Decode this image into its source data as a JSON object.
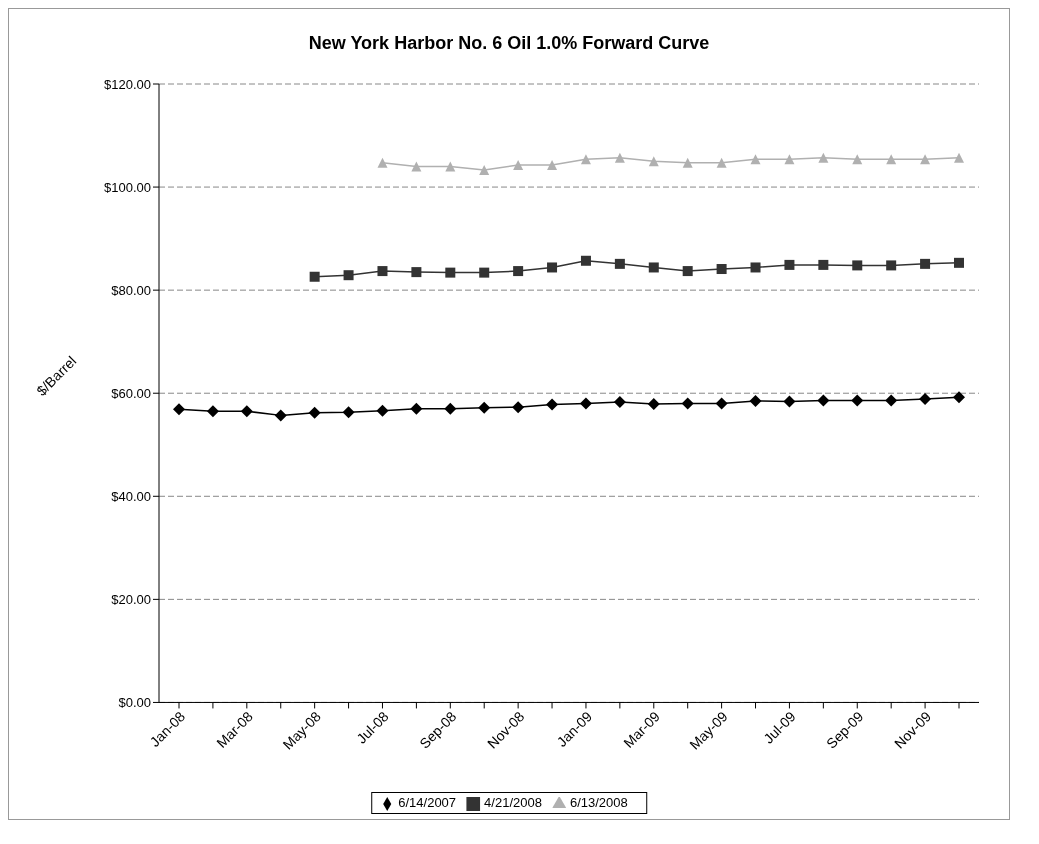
{
  "chart_data": {
    "type": "line",
    "title": "New York Harbor No. 6 Oil 1.0% Forward Curve",
    "ylabel": "$/Barrel",
    "categories": [
      "Jan-08",
      null,
      "Mar-08",
      null,
      "May-08",
      null,
      "Jul-08",
      null,
      "Sep-08",
      null,
      "Nov-08",
      null,
      "Jan-09",
      null,
      "Mar-09",
      null,
      "May-09",
      null,
      "Jul-09",
      null,
      "Sep-09",
      null,
      "Nov-09",
      null
    ],
    "series": [
      {
        "name": "6/14/2007",
        "color": "#000000",
        "marker": "diamond",
        "values": [
          56.9,
          56.5,
          56.5,
          55.7,
          56.2,
          56.3,
          56.6,
          57.0,
          57.0,
          57.2,
          57.3,
          57.8,
          58.0,
          58.3,
          57.9,
          58.0,
          58.0,
          58.5,
          58.4,
          58.6,
          58.6,
          58.6,
          58.9,
          59.2
        ]
      },
      {
        "name": "4/21/2008",
        "color": "#333333",
        "marker": "square",
        "values": [
          null,
          null,
          null,
          null,
          82.6,
          82.9,
          83.7,
          83.5,
          83.4,
          83.4,
          83.7,
          84.4,
          85.7,
          85.1,
          84.4,
          83.7,
          84.1,
          84.4,
          84.9,
          84.9,
          84.8,
          84.8,
          85.1,
          85.3
        ]
      },
      {
        "name": "6/13/2008",
        "color": "#b0b0b0",
        "marker": "triangle",
        "values": [
          null,
          null,
          null,
          null,
          null,
          null,
          104.7,
          104.0,
          104.0,
          103.3,
          104.3,
          104.3,
          105.4,
          105.7,
          105.0,
          104.7,
          104.7,
          105.4,
          105.4,
          105.7,
          105.4,
          105.4,
          105.4,
          105.7
        ]
      }
    ],
    "ylim": [
      0,
      120
    ],
    "yticks": [
      {
        "value": 0,
        "label": "$0.00"
      },
      {
        "value": 20,
        "label": "$20.00"
      },
      {
        "value": 40,
        "label": "$40.00"
      },
      {
        "value": 60,
        "label": "$60.00"
      },
      {
        "value": 80,
        "label": "$80.00"
      },
      {
        "value": 100,
        "label": "$100.00"
      },
      {
        "value": 120,
        "label": "$120.00"
      }
    ],
    "grid": "y",
    "legend": "bottom",
    "line_style": "solid"
  }
}
